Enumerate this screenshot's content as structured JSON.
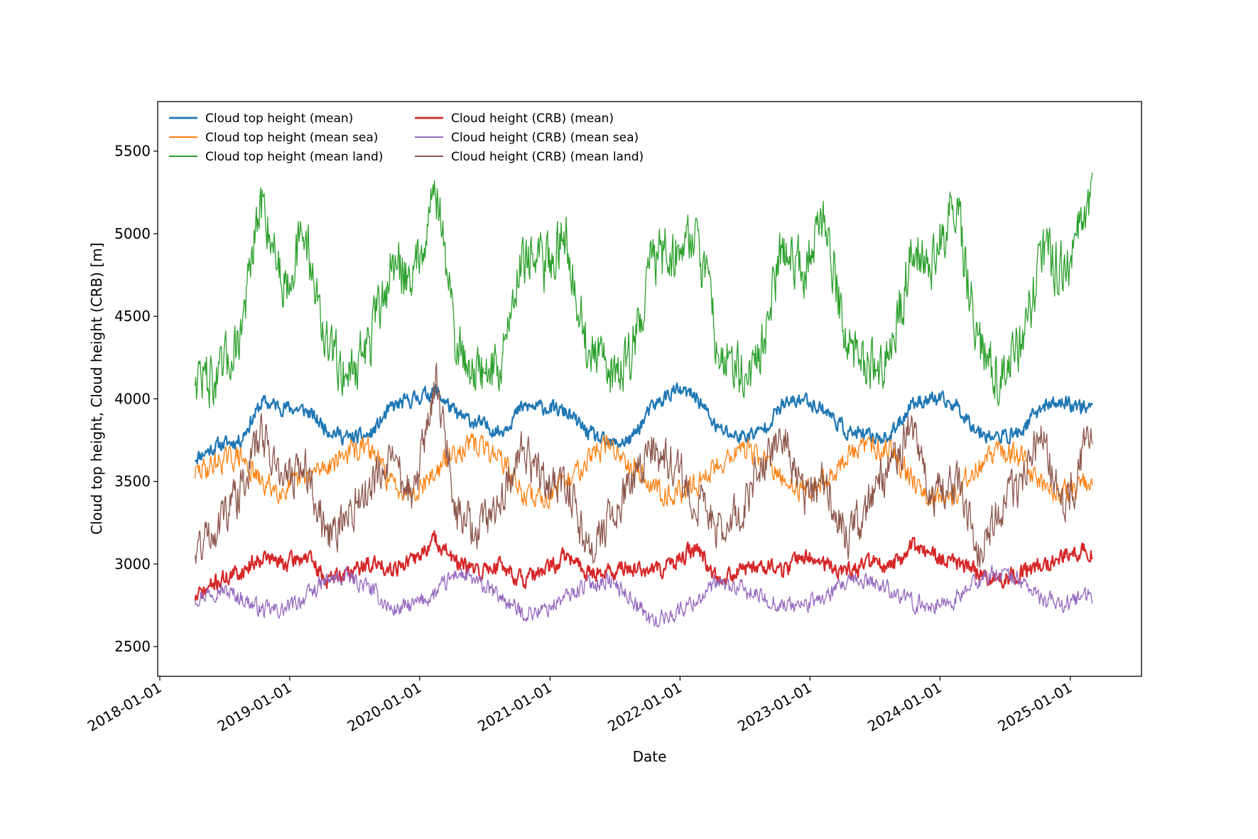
{
  "chart_data": {
    "type": "line",
    "xlabel": "Date",
    "ylabel": "Cloud top height, Cloud height (CRB) [m]",
    "x_axis_type": "date",
    "xlim": [
      "2017-12-26",
      "2025-07-20"
    ],
    "ylim": [
      2320,
      5800
    ],
    "x_ticks": [
      "2018-01-01",
      "2019-01-01",
      "2020-01-01",
      "2021-01-01",
      "2022-01-01",
      "2023-01-01",
      "2024-01-01",
      "2025-01-01"
    ],
    "y_ticks": [
      2500,
      3000,
      3500,
      4000,
      4500,
      5000,
      5500
    ],
    "grid": false,
    "legend": {
      "position": "top-left",
      "columns": 2
    },
    "data_start": "2018-04-10",
    "data_end": "2025-03-05",
    "series": [
      {
        "name": "Cloud top height (mean)",
        "color": "#1f77b4",
        "line_width": 2.2,
        "x": [
          "2018-04-15",
          "2018-06-15",
          "2018-08-15",
          "2018-10-15",
          "2018-12-15",
          "2019-02-15",
          "2019-04-15",
          "2019-06-15",
          "2019-08-15",
          "2019-10-15",
          "2019-12-15",
          "2020-02-15",
          "2020-04-15",
          "2020-06-15",
          "2020-08-15",
          "2020-10-15",
          "2020-12-15",
          "2021-02-15",
          "2021-04-15",
          "2021-06-15",
          "2021-08-15",
          "2021-10-15",
          "2021-12-15",
          "2022-02-15",
          "2022-04-15",
          "2022-06-15",
          "2022-08-15",
          "2022-10-15",
          "2022-12-15",
          "2023-02-15",
          "2023-04-15",
          "2023-06-15",
          "2023-08-15",
          "2023-10-15",
          "2023-12-15",
          "2024-02-15",
          "2024-04-15",
          "2024-06-15",
          "2024-08-15",
          "2024-10-15",
          "2024-12-15",
          "2025-02-15"
        ],
        "y": [
          3650,
          3720,
          3750,
          3980,
          3950,
          3930,
          3820,
          3760,
          3780,
          3950,
          4000,
          4050,
          3900,
          3850,
          3800,
          3950,
          3950,
          3920,
          3800,
          3720,
          3750,
          3950,
          4050,
          4020,
          3820,
          3770,
          3800,
          3960,
          4000,
          3930,
          3800,
          3770,
          3770,
          3980,
          4000,
          3960,
          3810,
          3760,
          3800,
          3960,
          3980,
          3950
        ]
      },
      {
        "name": "Cloud top height (mean sea)",
        "color": "#ff7f0e",
        "line_width": 1.3,
        "x": [
          "2018-04-15",
          "2018-06-15",
          "2018-08-15",
          "2018-10-15",
          "2018-12-15",
          "2019-02-15",
          "2019-04-15",
          "2019-06-15",
          "2019-08-15",
          "2019-10-15",
          "2019-12-15",
          "2020-02-15",
          "2020-04-15",
          "2020-06-15",
          "2020-08-15",
          "2020-10-15",
          "2020-12-15",
          "2021-02-15",
          "2021-04-15",
          "2021-06-15",
          "2021-08-15",
          "2021-10-15",
          "2021-12-15",
          "2022-02-15",
          "2022-04-15",
          "2022-06-15",
          "2022-08-15",
          "2022-10-15",
          "2022-12-15",
          "2023-02-15",
          "2023-04-15",
          "2023-06-15",
          "2023-08-15",
          "2023-10-15",
          "2023-12-15",
          "2024-02-15",
          "2024-04-15",
          "2024-06-15",
          "2024-08-15",
          "2024-10-15",
          "2024-12-15",
          "2025-02-15"
        ],
        "y": [
          3550,
          3620,
          3650,
          3480,
          3450,
          3520,
          3600,
          3680,
          3700,
          3480,
          3450,
          3550,
          3700,
          3720,
          3650,
          3420,
          3400,
          3480,
          3650,
          3720,
          3620,
          3470,
          3420,
          3480,
          3600,
          3700,
          3650,
          3500,
          3450,
          3500,
          3650,
          3720,
          3700,
          3520,
          3400,
          3420,
          3600,
          3680,
          3650,
          3470,
          3450,
          3470
        ]
      },
      {
        "name": "Cloud top height (mean land)",
        "color": "#2ca02c",
        "line_width": 1.3,
        "x": [
          "2018-04-15",
          "2018-06-15",
          "2018-08-15",
          "2018-10-15",
          "2018-12-15",
          "2019-02-15",
          "2019-04-15",
          "2019-06-15",
          "2019-08-15",
          "2019-10-15",
          "2019-12-15",
          "2020-02-15",
          "2020-04-15",
          "2020-06-15",
          "2020-08-15",
          "2020-10-15",
          "2020-12-15",
          "2021-02-15",
          "2021-04-15",
          "2021-06-15",
          "2021-08-15",
          "2021-10-15",
          "2021-12-15",
          "2022-02-15",
          "2022-04-15",
          "2022-06-15",
          "2022-08-15",
          "2022-10-15",
          "2022-12-15",
          "2023-02-15",
          "2023-04-15",
          "2023-06-15",
          "2023-08-15",
          "2023-10-15",
          "2023-12-15",
          "2024-02-15",
          "2024-04-15",
          "2024-06-15",
          "2024-08-15",
          "2024-10-15",
          "2024-12-15",
          "2025-02-15"
        ],
        "y": [
          4150,
          4100,
          4400,
          5200,
          4700,
          5000,
          4300,
          4150,
          4350,
          4800,
          4750,
          5300,
          4300,
          4150,
          4200,
          4900,
          4800,
          5000,
          4300,
          4150,
          4250,
          4850,
          4900,
          5000,
          4350,
          4150,
          4250,
          4950,
          4800,
          5100,
          4300,
          4200,
          4250,
          4900,
          4850,
          5200,
          4300,
          4150,
          4300,
          4900,
          4750,
          5150
        ]
      },
      {
        "name": "Cloud height (CRB) (mean)",
        "color": "#d62728",
        "line_width": 2.2,
        "x": [
          "2018-04-15",
          "2018-06-15",
          "2018-08-15",
          "2018-10-15",
          "2018-12-15",
          "2019-02-15",
          "2019-04-15",
          "2019-06-15",
          "2019-08-15",
          "2019-10-15",
          "2019-12-15",
          "2020-02-15",
          "2020-04-15",
          "2020-06-15",
          "2020-08-15",
          "2020-10-15",
          "2020-12-15",
          "2021-02-15",
          "2021-04-15",
          "2021-06-15",
          "2021-08-15",
          "2021-10-15",
          "2021-12-15",
          "2022-02-15",
          "2022-04-15",
          "2022-06-15",
          "2022-08-15",
          "2022-10-15",
          "2022-12-15",
          "2023-02-15",
          "2023-04-15",
          "2023-06-15",
          "2023-08-15",
          "2023-10-15",
          "2023-12-15",
          "2024-02-15",
          "2024-04-15",
          "2024-06-15",
          "2024-08-15",
          "2024-10-15",
          "2024-12-15",
          "2025-02-15"
        ],
        "y": [
          2800,
          2900,
          2950,
          3050,
          3000,
          3050,
          2900,
          2950,
          3000,
          2980,
          3020,
          3150,
          3000,
          2950,
          3000,
          2900,
          2950,
          3050,
          2950,
          2950,
          2980,
          2950,
          3000,
          3100,
          2920,
          2950,
          3000,
          2960,
          3050,
          3000,
          2950,
          3000,
          2980,
          3100,
          3050,
          3000,
          2950,
          2900,
          2950,
          3000,
          3050,
          3080
        ]
      },
      {
        "name": "Cloud height (CRB) (mean sea)",
        "color": "#9467bd",
        "line_width": 1.3,
        "x": [
          "2018-04-15",
          "2018-06-15",
          "2018-08-15",
          "2018-10-15",
          "2018-12-15",
          "2019-02-15",
          "2019-04-15",
          "2019-06-15",
          "2019-08-15",
          "2019-10-15",
          "2019-12-15",
          "2020-02-15",
          "2020-04-15",
          "2020-06-15",
          "2020-08-15",
          "2020-10-15",
          "2020-12-15",
          "2021-02-15",
          "2021-04-15",
          "2021-06-15",
          "2021-08-15",
          "2021-10-15",
          "2021-12-15",
          "2022-02-15",
          "2022-04-15",
          "2022-06-15",
          "2022-08-15",
          "2022-10-15",
          "2022-12-15",
          "2023-02-15",
          "2023-04-15",
          "2023-06-15",
          "2023-08-15",
          "2023-10-15",
          "2023-12-15",
          "2024-02-15",
          "2024-04-15",
          "2024-06-15",
          "2024-08-15",
          "2024-10-15",
          "2024-12-15",
          "2025-02-15"
        ],
        "y": [
          2800,
          2850,
          2800,
          2720,
          2720,
          2800,
          2900,
          2920,
          2850,
          2720,
          2750,
          2820,
          2950,
          2880,
          2800,
          2700,
          2720,
          2800,
          2880,
          2900,
          2800,
          2650,
          2700,
          2780,
          2880,
          2850,
          2800,
          2750,
          2750,
          2800,
          2880,
          2900,
          2850,
          2760,
          2750,
          2780,
          2900,
          2950,
          2900,
          2780,
          2760,
          2800
        ]
      },
      {
        "name": "Cloud height (CRB) (mean land)",
        "color": "#8c564b",
        "line_width": 1.3,
        "x": [
          "2018-04-15",
          "2018-06-15",
          "2018-08-15",
          "2018-10-15",
          "2018-12-15",
          "2019-02-15",
          "2019-04-15",
          "2019-06-15",
          "2019-08-15",
          "2019-10-15",
          "2019-12-15",
          "2020-02-15",
          "2020-04-15",
          "2020-06-15",
          "2020-08-15",
          "2020-10-15",
          "2020-12-15",
          "2021-02-15",
          "2021-04-15",
          "2021-06-15",
          "2021-08-15",
          "2021-10-15",
          "2021-12-15",
          "2022-02-15",
          "2022-04-15",
          "2022-06-15",
          "2022-08-15",
          "2022-10-15",
          "2022-12-15",
          "2023-02-15",
          "2023-04-15",
          "2023-06-15",
          "2023-08-15",
          "2023-10-15",
          "2023-12-15",
          "2024-02-15",
          "2024-04-15",
          "2024-06-15",
          "2024-08-15",
          "2024-10-15",
          "2024-12-15",
          "2025-02-15"
        ],
        "y": [
          3100,
          3250,
          3450,
          3800,
          3500,
          3600,
          3150,
          3300,
          3500,
          3600,
          3400,
          4100,
          3300,
          3200,
          3400,
          3700,
          3500,
          3500,
          3100,
          3250,
          3450,
          3700,
          3600,
          3400,
          3200,
          3300,
          3600,
          3800,
          3400,
          3500,
          3150,
          3350,
          3600,
          3850,
          3400,
          3500,
          3100,
          3300,
          3500,
          3800,
          3300,
          3700
        ]
      }
    ]
  }
}
